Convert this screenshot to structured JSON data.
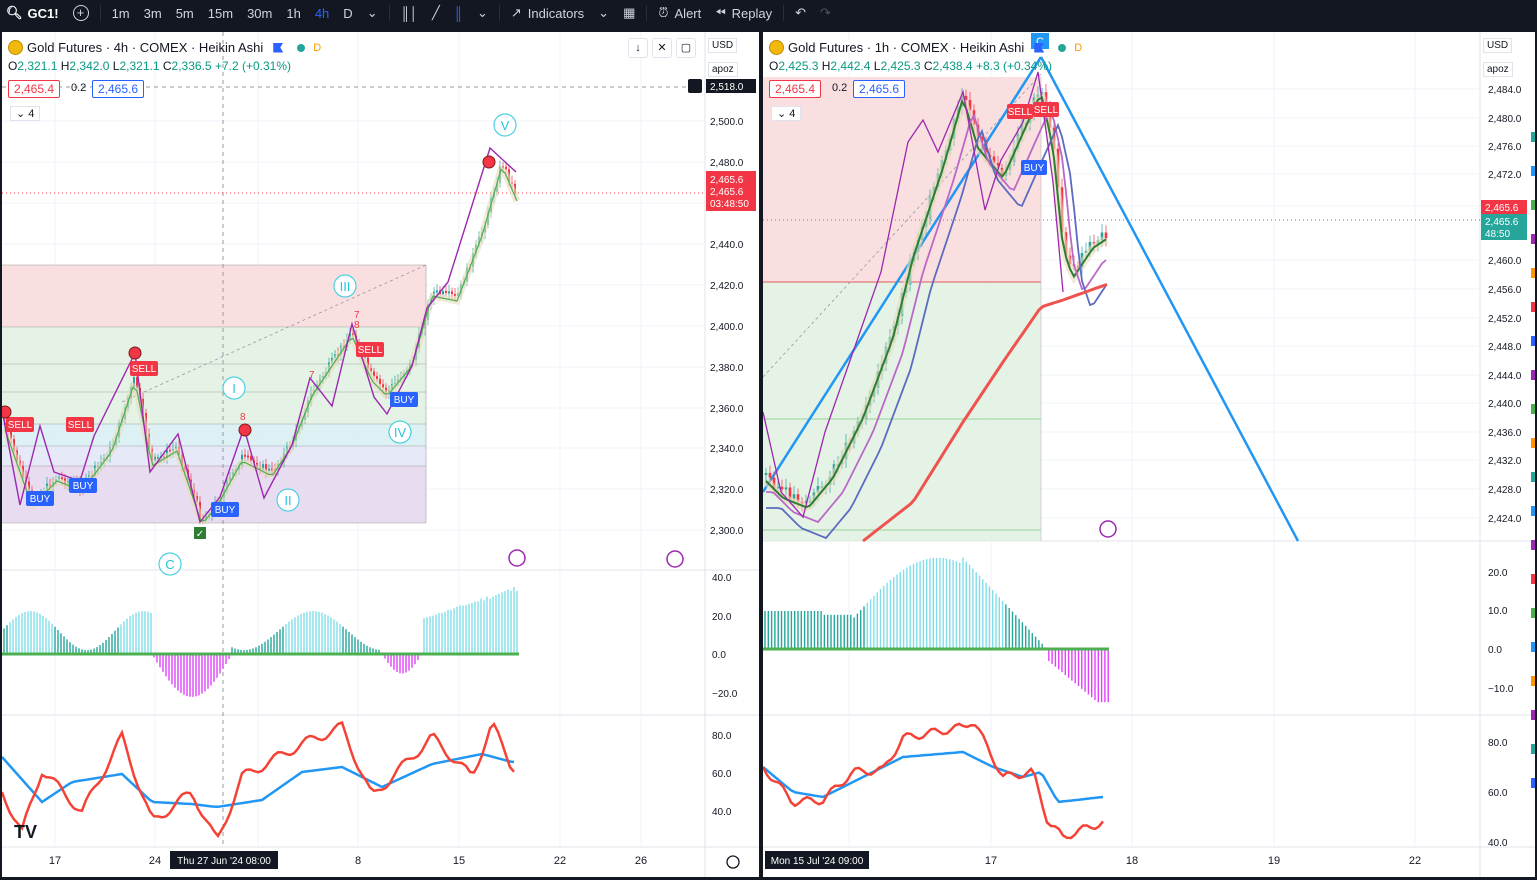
{
  "toolbar": {
    "symbol": "GC1!",
    "intervals": [
      "1m",
      "3m",
      "5m",
      "15m",
      "30m",
      "1h",
      "4h",
      "D"
    ],
    "active_interval": "4h",
    "indicators_label": "Indicators",
    "alert_label": "Alert",
    "replay_label": "Replay"
  },
  "left": {
    "title": "Gold Futures · 4h · COMEX · Heikin Ashi",
    "d_badge": "D",
    "ohlc": {
      "o_label": "O",
      "o": "2,321.1",
      "h_label": "H",
      "h": "2,342.0",
      "l_label": "L",
      "l": "2,321.1",
      "c_label": "C",
      "c": "2,336.5",
      "chg": "+7.2 (+0.31%)"
    },
    "bid": "2,465.4",
    "spread": "0.2",
    "ask": "2,465.6",
    "collapse": "4",
    "currency": "USD",
    "scale_mode": "apoz",
    "crosshair_price": "2,518.0",
    "price_ticks": [
      "2,500.0",
      "2,480.0",
      "2,460.0",
      "2,440.0",
      "2,420.0",
      "2,400.0",
      "2,380.0",
      "2,360.0",
      "2,340.0",
      "2,320.0",
      "2,300.0"
    ],
    "last_price_labels": [
      "2,465.6",
      "2,465.6",
      "03:48:50"
    ],
    "osc_ticks": [
      "40.0",
      "20.0",
      "0.0",
      "−20.0"
    ],
    "rsi_ticks": [
      "80.0",
      "60.0",
      "40.0"
    ],
    "time_ticks": [
      "17",
      "24",
      "8",
      "15",
      "22",
      "26"
    ],
    "crosshair_time": "Thu 27 Jun '24   08:00",
    "waves": [
      "V",
      "III",
      "I",
      "IV",
      "II",
      "C"
    ],
    "signals": [
      "SELL",
      "SELL",
      "SELL",
      "SELL",
      "BUY",
      "BUY",
      "BUY",
      "BUY"
    ],
    "counts": [
      "7",
      "8",
      "7",
      "8"
    ]
  },
  "right": {
    "title": "Gold Futures · 1h · COMEX · Heikin Ashi",
    "d_badge": "D",
    "ohlc": {
      "o_label": "O",
      "o": "2,425.3",
      "h_label": "H",
      "h": "2,442.4",
      "l_label": "L",
      "l": "2,425.3",
      "c_label": "C",
      "c": "2,438.4",
      "chg": "+8.3 (+0.34%)"
    },
    "bid": "2,465.4",
    "spread": "0.2",
    "ask": "2,465.6",
    "collapse": "4",
    "currency": "USD",
    "scale_mode": "apoz",
    "price_ticks": [
      "2,484.0",
      "2,480.0",
      "2,476.0",
      "2,472.0",
      "2,468.0",
      "2,460.0",
      "2,456.0",
      "2,452.0",
      "2,448.0",
      "2,444.0",
      "2,440.0",
      "2,436.0",
      "2,432.0",
      "2,428.0",
      "2,424.0"
    ],
    "last_price_labels": [
      "2,465.6",
      "2,465.6",
      "48:50"
    ],
    "osc_ticks": [
      "20.0",
      "10.0",
      "0.0",
      "−10.0"
    ],
    "rsi_ticks": [
      "80.0",
      "60.0",
      "40.0"
    ],
    "time_ticks": [
      "17",
      "18",
      "19",
      "22"
    ],
    "crosshair_time": "Mon 15 Jul '24   09:00",
    "wave_top": "C",
    "signals": [
      "SELL",
      "SELL",
      "BUY"
    ]
  },
  "colors": {
    "bull": "#26a69a",
    "bear": "#f23645",
    "accent": "#2962ff",
    "wave": "#00bcd4",
    "zigzag": "#9c27b0"
  }
}
